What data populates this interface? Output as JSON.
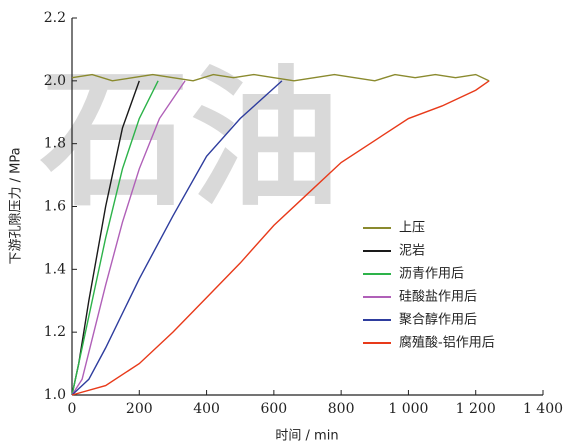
{
  "watermark": "石油",
  "chart_data": {
    "type": "line",
    "xlabel": "时间 / min",
    "ylabel": "下游孔隙压力 / MPa",
    "xlim": [
      0,
      1400
    ],
    "xticks": [
      0,
      200,
      400,
      600,
      800,
      {
        "value": 1000,
        "label": "1 000"
      },
      {
        "value": 1200,
        "label": "1 200"
      },
      {
        "value": 1400,
        "label": "1 400"
      }
    ],
    "ylim": [
      1.0,
      2.2
    ],
    "yticks": [
      {
        "value": 1,
        "label": "1.0"
      },
      1.2,
      1.4,
      1.6,
      1.8,
      {
        "value": 2,
        "label": "2.0"
      },
      2.2
    ],
    "legend": "right",
    "series": [
      {
        "name": "上压",
        "color": "#8a8a2e",
        "x": [
          0,
          60,
          120,
          180,
          240,
          300,
          360,
          420,
          480,
          540,
          600,
          660,
          720,
          780,
          840,
          900,
          960,
          1020,
          1080,
          1140,
          1200,
          1240
        ],
        "values": [
          2.01,
          2.02,
          2.0,
          2.01,
          2.02,
          2.01,
          2.0,
          2.02,
          2.01,
          2.02,
          2.01,
          2.0,
          2.01,
          2.02,
          2.01,
          2.0,
          2.02,
          2.01,
          2.02,
          2.01,
          2.02,
          2.0
        ]
      },
      {
        "name": "泥岩",
        "color": "#1a1a1a",
        "x": [
          0,
          20,
          50,
          100,
          150,
          200
        ],
        "values": [
          1.0,
          1.1,
          1.3,
          1.6,
          1.85,
          2.0
        ]
      },
      {
        "name": "沥青作用后",
        "color": "#2db34a",
        "x": [
          0,
          50,
          100,
          150,
          200,
          256
        ],
        "values": [
          1.0,
          1.25,
          1.5,
          1.72,
          1.88,
          2.0
        ]
      },
      {
        "name": "硅酸盐作用后",
        "color": "#b060b8",
        "x": [
          0,
          30,
          100,
          150,
          200,
          260,
          336
        ],
        "values": [
          1.0,
          1.05,
          1.35,
          1.55,
          1.72,
          1.88,
          2.0
        ]
      },
      {
        "name": "聚合醇作用后",
        "color": "#2e3d9e",
        "x": [
          0,
          50,
          100,
          200,
          300,
          400,
          500,
          624
        ],
        "values": [
          1.0,
          1.05,
          1.15,
          1.37,
          1.57,
          1.76,
          1.88,
          2.0
        ]
      },
      {
        "name": "腐殖酸-铝作用后",
        "color": "#e83a1a",
        "x": [
          0,
          100,
          200,
          300,
          400,
          500,
          600,
          700,
          800,
          900,
          1000,
          1100,
          1200,
          1240
        ],
        "values": [
          1.0,
          1.03,
          1.1,
          1.2,
          1.31,
          1.42,
          1.54,
          1.64,
          1.74,
          1.81,
          1.88,
          1.92,
          1.97,
          2.0
        ]
      }
    ]
  }
}
